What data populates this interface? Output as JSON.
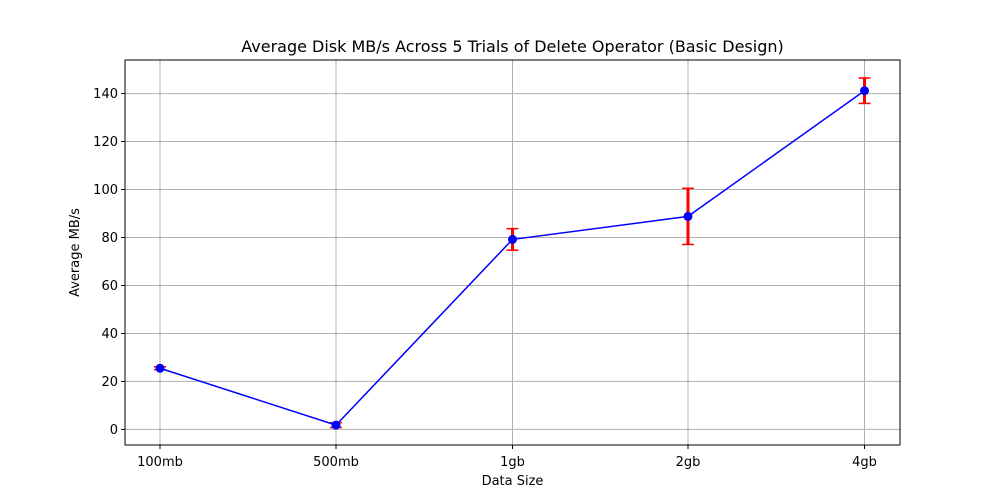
{
  "chart_data": {
    "type": "line",
    "title": "Average Disk MB/s Across 5 Trials of Delete Operator (Basic Design)",
    "xlabel": "Data Size",
    "ylabel": "Average MB/s",
    "categories": [
      "100mb",
      "500mb",
      "1gb",
      "2gb",
      "4gb"
    ],
    "series": [
      {
        "values": [
          25.5,
          1.8,
          79.2,
          88.8,
          141.2
        ],
        "errors": [
          0.6,
          1.0,
          4.5,
          11.7,
          5.3
        ],
        "line_color": "#0000ff",
        "marker_color": "#0000ff",
        "error_color": "#ff0000"
      }
    ],
    "ylim": [
      -6.5,
      154
    ],
    "yticks": [
      0,
      20,
      40,
      60,
      80,
      100,
      120,
      140
    ],
    "grid": true
  }
}
